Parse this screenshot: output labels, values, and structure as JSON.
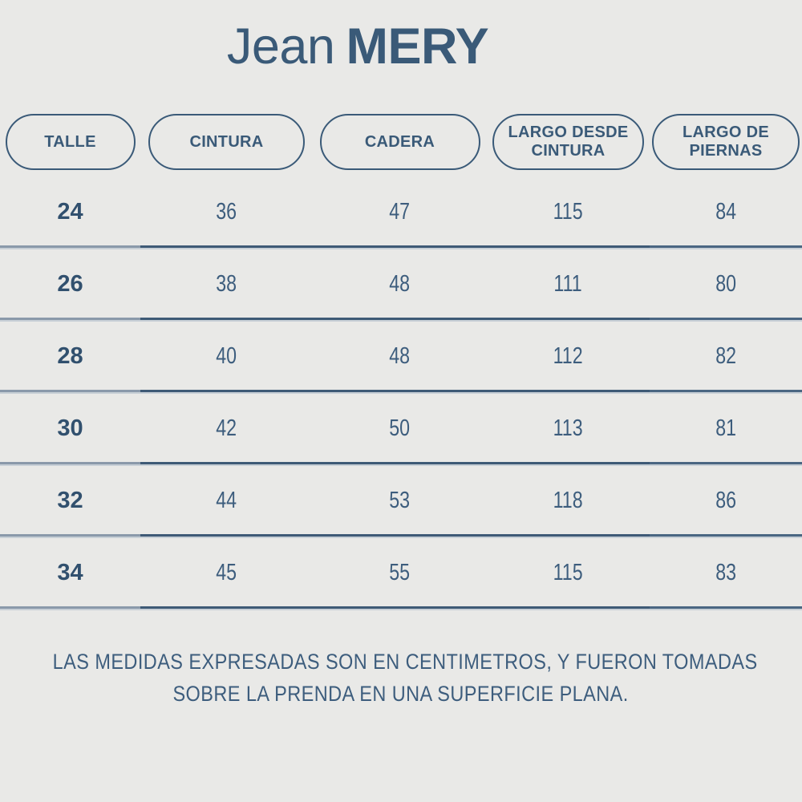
{
  "title": {
    "regular": "Jean",
    "bold": "MERY"
  },
  "columns": [
    {
      "label": "TALLE"
    },
    {
      "label": "CINTURA"
    },
    {
      "label": "CADERA"
    },
    {
      "label": "LARGO DESDE CINTURA"
    },
    {
      "label": "LARGO DE PIERNAS"
    }
  ],
  "table": {
    "rows": [
      {
        "cells": [
          "24",
          "36",
          "47",
          "115",
          "84"
        ]
      },
      {
        "cells": [
          "26",
          "38",
          "48",
          "111",
          "80"
        ]
      },
      {
        "cells": [
          "28",
          "40",
          "48",
          "112",
          "82"
        ]
      },
      {
        "cells": [
          "30",
          "42",
          "50",
          "113",
          "81"
        ]
      },
      {
        "cells": [
          "32",
          "44",
          "53",
          "118",
          "86"
        ]
      },
      {
        "cells": [
          "34",
          "45",
          "55",
          "115",
          "83"
        ]
      }
    ]
  },
  "footer": {
    "line1": "LAS MEDIDAS EXPRESADAS SON EN CENTIMETROS, Y FUERON TOMADAS",
    "line2": "SOBRE LA PRENDA EN UNA SUPERFICIE PLANA."
  },
  "colors": {
    "background": "#e9e9e7",
    "primary": "#3a5a78",
    "size_column_text": "#31506e",
    "measure_text": "#3d5d7d",
    "divider": "#3e5a76",
    "divider_light": "#8a99aa"
  },
  "chart_data": {
    "type": "table",
    "title": "Jean MERY",
    "columns": [
      "TALLE",
      "CINTURA",
      "CADERA",
      "LARGO DESDE CINTURA",
      "LARGO DE PIERNAS"
    ],
    "rows": [
      [
        24,
        36,
        47,
        115,
        84
      ],
      [
        26,
        38,
        48,
        111,
        80
      ],
      [
        28,
        40,
        48,
        112,
        82
      ],
      [
        30,
        42,
        50,
        113,
        81
      ],
      [
        32,
        44,
        53,
        118,
        86
      ],
      [
        34,
        45,
        55,
        115,
        83
      ]
    ],
    "units": "centimetros",
    "note": "LAS MEDIDAS EXPRESADAS SON EN CENTIMETROS, Y FUERON TOMADAS SOBRE LA PRENDA EN UNA SUPERFICIE PLANA."
  }
}
